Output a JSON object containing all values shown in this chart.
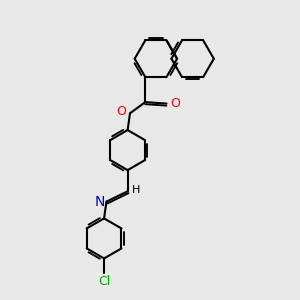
{
  "bg_color": "#e8e8e8",
  "bond_color": "#000000",
  "bond_width": 1.5,
  "atom_colors": {
    "O": "#ff0000",
    "N": "#0000cd",
    "Cl": "#00aa00",
    "C": "#000000",
    "H": "#000000"
  },
  "font_size": 8,
  "figsize": [
    3.0,
    3.0
  ],
  "dpi": 100,
  "xlim": [
    0,
    10
  ],
  "ylim": [
    0,
    10
  ],
  "naph_r": 0.72,
  "ring_r": 0.68
}
